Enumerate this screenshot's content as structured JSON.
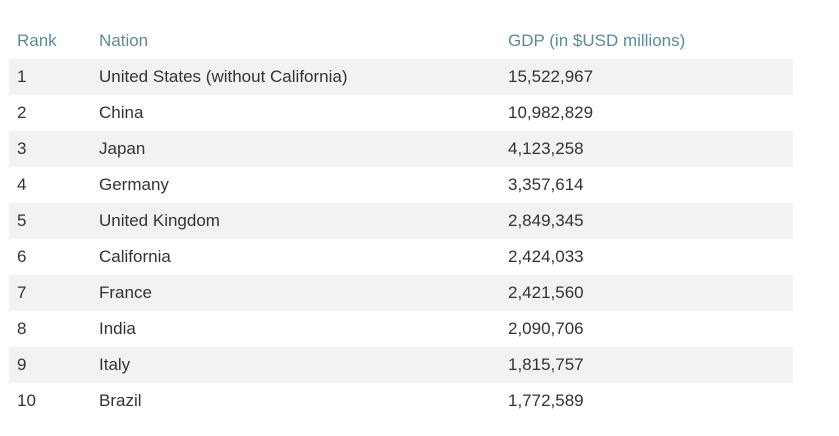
{
  "table": {
    "headers": {
      "rank": "Rank",
      "nation": "Nation",
      "gdp": "GDP (in $USD millions)"
    },
    "rows": [
      {
        "rank": "1",
        "nation": "United States (without California)",
        "gdp": "15,522,967"
      },
      {
        "rank": "2",
        "nation": "China",
        "gdp": "10,982,829"
      },
      {
        "rank": "3",
        "nation": "Japan",
        "gdp": "4,123,258"
      },
      {
        "rank": "4",
        "nation": "Germany",
        "gdp": "3,357,614"
      },
      {
        "rank": "5",
        "nation": "United Kingdom",
        "gdp": "2,849,345"
      },
      {
        "rank": "6",
        "nation": "California",
        "gdp": "2,424,033"
      },
      {
        "rank": "7",
        "nation": "France",
        "gdp": "2,421,560"
      },
      {
        "rank": "8",
        "nation": "India",
        "gdp": "2,090,706"
      },
      {
        "rank": "9",
        "nation": "Italy",
        "gdp": "1,815,757"
      },
      {
        "rank": "10",
        "nation": "Brazil",
        "gdp": "1,772,589"
      }
    ]
  }
}
